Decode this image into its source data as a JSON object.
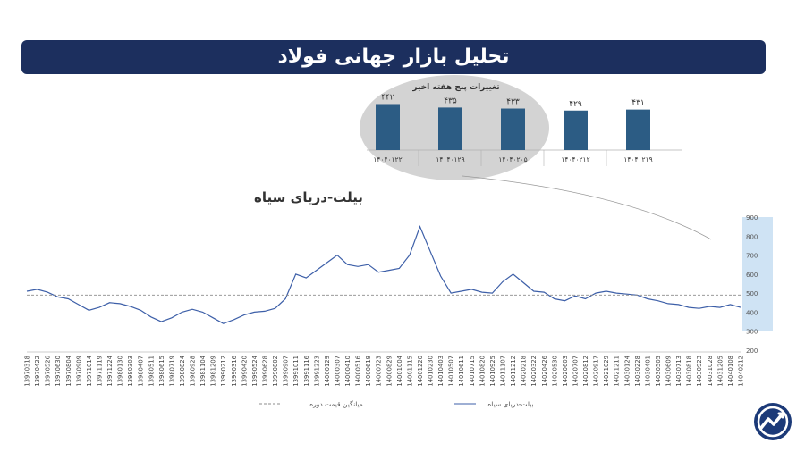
{
  "banner": {
    "title": "تحلیل بازار جهانی فولاد"
  },
  "chart_data": [
    {
      "type": "bar",
      "title": "تغییرات پنج هفته اخیر",
      "categories": [
        "۱۴۰۴۰۱۲۲",
        "۱۴۰۴۰۱۲۹",
        "۱۴۰۴۰۲۰۵",
        "۱۴۰۴۰۲۱۲",
        "۱۴۰۴۰۲۱۹"
      ],
      "values": [
        442,
        435,
        433,
        429,
        431
      ],
      "value_labels": [
        "۴۴۲",
        "۴۳۵",
        "۴۳۳",
        "۴۲۹",
        "۴۳۱"
      ],
      "ylim": [
        350,
        450
      ],
      "bar_color": "#2c5c84"
    },
    {
      "type": "line",
      "title": "بیلت-دریای سیاه",
      "ylim": [
        200,
        900
      ],
      "yticks": [
        200,
        300,
        400,
        500,
        600,
        700,
        800,
        900
      ],
      "highlight_range": [
        300,
        900
      ],
      "x": [
        "13970318",
        "13970422",
        "13970526",
        "13970630",
        "13970804",
        "13970909",
        "13971014",
        "13971119",
        "13971224",
        "13980130",
        "13980303",
        "13980407",
        "13980511",
        "13980615",
        "13980719",
        "13980824",
        "13980928",
        "13981104",
        "13981209",
        "13990212",
        "13990316",
        "13990420",
        "13990524",
        "13990628",
        "13990802",
        "13990907",
        "13991011",
        "13991116",
        "13991223",
        "14000129",
        "14000307",
        "14000410",
        "14000516",
        "14000619",
        "14000723",
        "14000829",
        "14001004",
        "14001115",
        "14001220",
        "14010230",
        "14010403",
        "14010507",
        "14010611",
        "14010715",
        "14010820",
        "14010925",
        "14011107",
        "14011212",
        "14020218",
        "14020322",
        "14020426",
        "14020530",
        "14020603",
        "14020707",
        "14020812",
        "14020917",
        "14021029",
        "14021211",
        "14030124",
        "14030228",
        "14030401",
        "14030505",
        "14030609",
        "14030713",
        "14030818",
        "14030923",
        "14031028",
        "14031205",
        "14040108",
        "14040212"
      ],
      "series": [
        {
          "name": "بیلت-دریای سیاه",
          "color": "#3d5fa8",
          "values": [
            510,
            520,
            505,
            480,
            470,
            440,
            410,
            425,
            450,
            445,
            430,
            410,
            375,
            350,
            370,
            400,
            415,
            400,
            370,
            340,
            360,
            385,
            400,
            405,
            420,
            470,
            600,
            580,
            620,
            660,
            700,
            650,
            640,
            650,
            610,
            620,
            630,
            700,
            850,
            720,
            590,
            500,
            510,
            520,
            505,
            500,
            560,
            600,
            555,
            510,
            505,
            470,
            460,
            485,
            470,
            500,
            510,
            500,
            495,
            490,
            470,
            460,
            445,
            440,
            425,
            420,
            430,
            425,
            440,
            425
          ]
        },
        {
          "name": "میانگین قیمت دوره",
          "color": "#8c8c8c",
          "values": [
            490,
            490,
            490,
            490,
            490,
            490,
            490,
            490,
            490,
            490,
            490,
            490,
            490,
            490,
            490,
            490,
            490,
            490,
            490,
            490,
            490,
            490,
            490,
            490,
            490,
            490,
            490,
            490,
            490,
            490,
            490,
            490,
            490,
            490,
            490,
            490,
            490,
            490,
            490,
            490,
            490,
            490,
            490,
            490,
            490,
            490,
            490,
            490,
            490,
            490,
            490,
            490,
            490,
            490,
            490,
            490,
            490,
            490,
            490,
            490,
            490,
            490,
            490,
            490,
            490,
            490,
            490,
            490,
            490,
            490
          ]
        }
      ],
      "legend": [
        "بیلت-دریای سیاه",
        "میانگین قیمت دوره"
      ]
    }
  ]
}
